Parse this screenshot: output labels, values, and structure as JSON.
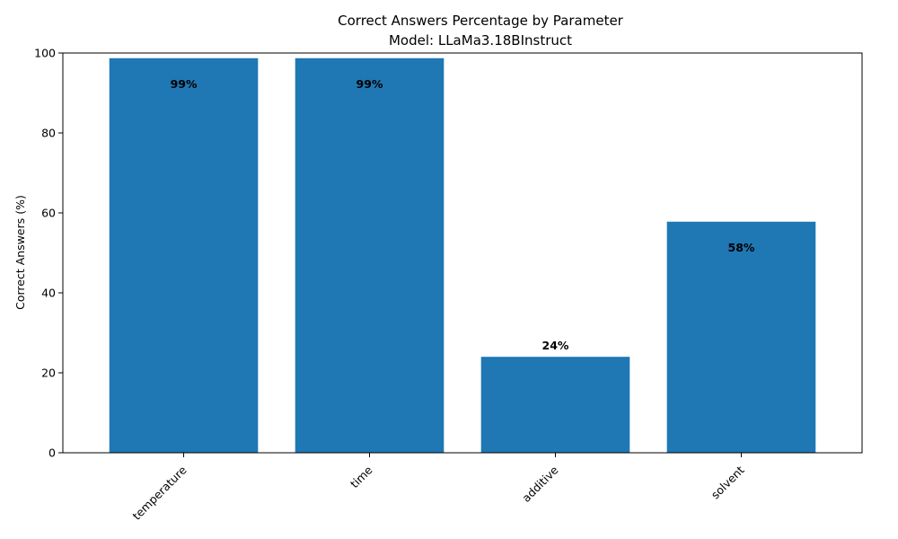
{
  "chart_data": {
    "type": "bar",
    "title": "Correct Answers Percentage by Parameter",
    "subtitle": "Model: LLaMa3.18BInstruct",
    "xlabel": "",
    "ylabel": "Correct Answers (%)",
    "ylim": [
      0,
      100
    ],
    "yticks": [
      0,
      20,
      40,
      60,
      80,
      100
    ],
    "categories": [
      "temperature",
      "time",
      "additive",
      "solvent"
    ],
    "values": [
      98.7,
      98.7,
      24,
      57.8
    ],
    "data_labels": [
      "99%",
      "99%",
      "24%",
      "58%"
    ],
    "bar_color": "#1f77b4",
    "grid": false,
    "legend": "none"
  }
}
